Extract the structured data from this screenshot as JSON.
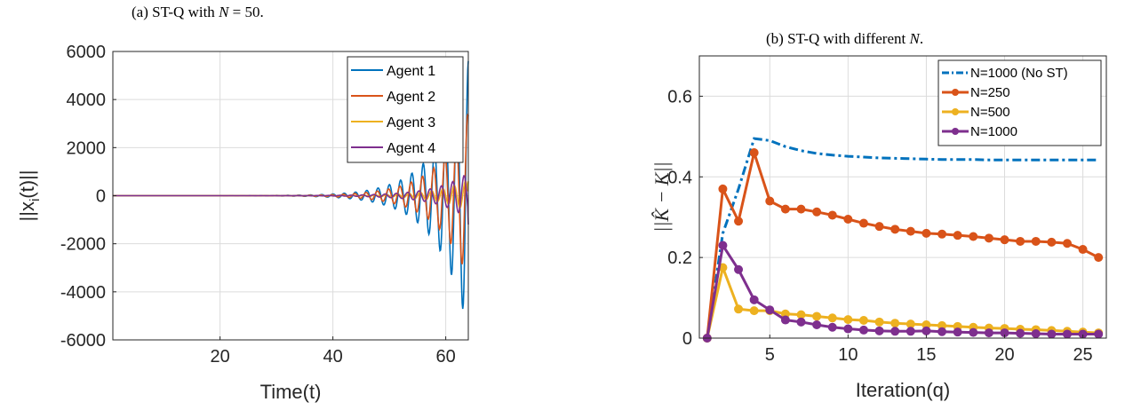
{
  "captions": {
    "a": "(a) ST-Q with N = 50.",
    "b": "(b) ST-Q with different N."
  },
  "chart_data": [
    {
      "type": "line",
      "caption": "(a) ST-Q with N = 50.",
      "xlabel": "Time(t)",
      "ylabel": "||x_i(t)||",
      "xlim": [
        1,
        64
      ],
      "ylim": [
        -6000,
        6000
      ],
      "xticks": [
        20,
        40,
        60
      ],
      "yticks": [
        -6000,
        -4000,
        -2000,
        0,
        2000,
        4000,
        6000
      ],
      "grid": true,
      "legend_position": "top-right",
      "series": [
        {
          "name": "Agent 1",
          "color": "#0072BD",
          "env": [
            1,
            2,
            2,
            3,
            3,
            4,
            5,
            6,
            7,
            9,
            11,
            13,
            15,
            18,
            22,
            27,
            33,
            40,
            48,
            58,
            70,
            85,
            103,
            125,
            150,
            182,
            220,
            265,
            320,
            385,
            460,
            550,
            650,
            780,
            940,
            1120,
            1340,
            1600,
            1900,
            2300,
            2750,
            3300,
            3950,
            4700,
            5600
          ],
          "phase": 0,
          "amp": 1.0,
          "final": 5600
        },
        {
          "name": "Agent 2",
          "color": "#D95319",
          "phase": 0.4,
          "amp": 0.62,
          "final": 3300
        },
        {
          "name": "Agent 3",
          "color": "#EDB120",
          "phase": 1.6,
          "amp": 0.12,
          "final": 600
        },
        {
          "name": "Agent 4",
          "color": "#7E2F8E",
          "phase": 2.4,
          "amp": 0.17,
          "final": -1200
        }
      ]
    },
    {
      "type": "line",
      "caption": "(b) ST-Q with different N.",
      "xlabel": "Iteration(q)",
      "ylabel": "||K̂ − K||",
      "xlim": [
        0.5,
        26.5
      ],
      "ylim": [
        0,
        0.7
      ],
      "xticks": [
        5,
        10,
        15,
        20,
        25
      ],
      "yticks": [
        0,
        0.2,
        0.4,
        0.6
      ],
      "grid": true,
      "legend_position": "top-right",
      "x": [
        1,
        2,
        3,
        4,
        5,
        6,
        7,
        8,
        9,
        10,
        11,
        12,
        13,
        14,
        15,
        16,
        17,
        18,
        19,
        20,
        21,
        22,
        23,
        24,
        25,
        26
      ],
      "series": [
        {
          "name": "N=1000 (No ST)",
          "color": "#0072BD",
          "style": "dashdot",
          "markers": false,
          "values": [
            0,
            0.26,
            0.37,
            0.495,
            0.49,
            0.475,
            0.465,
            0.458,
            0.454,
            0.451,
            0.449,
            0.447,
            0.446,
            0.445,
            0.444,
            0.443,
            0.443,
            0.443,
            0.442,
            0.442,
            0.442,
            0.442,
            0.442,
            0.442,
            0.442,
            0.442
          ]
        },
        {
          "name": "N=250",
          "color": "#D95319",
          "style": "solid",
          "markers": true,
          "values": [
            0,
            0.37,
            0.29,
            0.46,
            0.34,
            0.32,
            0.32,
            0.313,
            0.305,
            0.295,
            0.285,
            0.277,
            0.27,
            0.265,
            0.26,
            0.258,
            0.255,
            0.252,
            0.248,
            0.244,
            0.24,
            0.24,
            0.238,
            0.235,
            0.22,
            0.2
          ]
        },
        {
          "name": "N=500",
          "color": "#EDB120",
          "style": "solid",
          "markers": true,
          "values": [
            0,
            0.175,
            0.072,
            0.068,
            0.068,
            0.06,
            0.058,
            0.054,
            0.05,
            0.046,
            0.044,
            0.04,
            0.037,
            0.035,
            0.033,
            0.031,
            0.029,
            0.027,
            0.025,
            0.024,
            0.022,
            0.021,
            0.019,
            0.017,
            0.015,
            0.013
          ]
        },
        {
          "name": "N=1000",
          "color": "#7E2F8E",
          "style": "solid",
          "markers": true,
          "values": [
            0,
            0.23,
            0.17,
            0.095,
            0.07,
            0.045,
            0.04,
            0.033,
            0.027,
            0.023,
            0.02,
            0.018,
            0.017,
            0.017,
            0.018,
            0.016,
            0.015,
            0.014,
            0.013,
            0.013,
            0.012,
            0.011,
            0.01,
            0.01,
            0.01,
            0.01
          ]
        }
      ]
    }
  ]
}
